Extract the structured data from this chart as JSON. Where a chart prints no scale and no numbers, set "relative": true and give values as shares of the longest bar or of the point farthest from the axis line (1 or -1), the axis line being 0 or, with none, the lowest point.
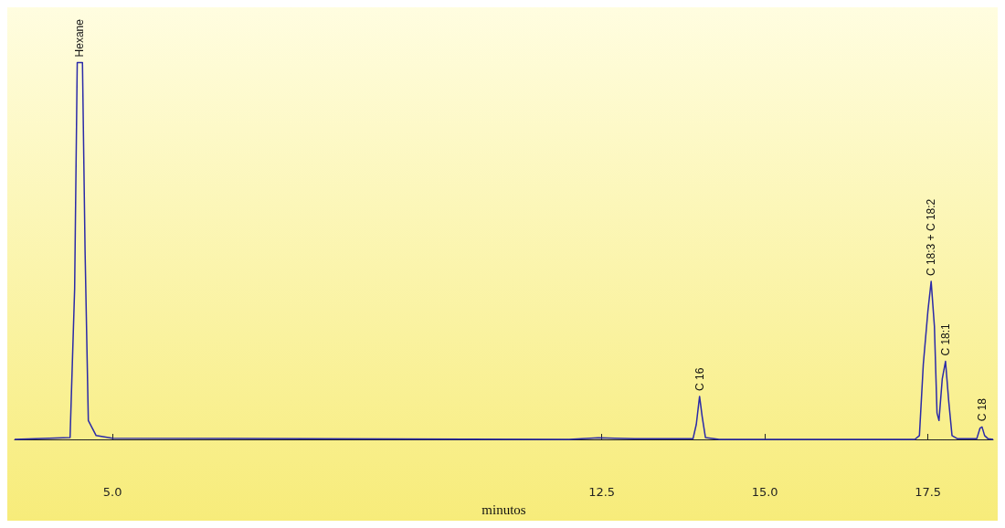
{
  "chart_data": {
    "type": "line",
    "relative": true,
    "xlabel": "minutos",
    "color": "#2a2aa8",
    "xlim": [
      3.5,
      18.5
    ],
    "xticks": [
      {
        "value": 5.0,
        "label": "5.0"
      },
      {
        "value": 12.5,
        "label": "12.5"
      },
      {
        "value": 15.0,
        "label": "15.0"
      },
      {
        "value": 17.5,
        "label": "17.5"
      }
    ],
    "x": [
      3.5,
      4.35,
      4.42,
      4.46,
      4.54,
      4.58,
      4.63,
      4.75,
      5.0,
      12.0,
      12.45,
      12.7,
      13.0,
      13.9,
      13.95,
      14.0,
      14.04,
      14.09,
      14.3,
      17.3,
      17.37,
      17.43,
      17.5,
      17.55,
      17.6,
      17.64,
      17.67,
      17.72,
      17.77,
      17.82,
      17.87,
      17.95,
      18.25,
      18.3,
      18.33,
      18.37,
      18.42,
      18.5
    ],
    "values": [
      0,
      0.005,
      0.4,
      1,
      1,
      0.5,
      0.05,
      0.01,
      0.003,
      0,
      0.004,
      0.003,
      0.002,
      0.002,
      0.04,
      0.114,
      0.06,
      0.005,
      0,
      0,
      0.01,
      0.2,
      0.34,
      0.419,
      0.3,
      0.07,
      0.05,
      0.16,
      0.207,
      0.1,
      0.01,
      0.002,
      0.002,
      0.03,
      0.033,
      0.01,
      0.002,
      0
    ],
    "annotations": [
      {
        "text": "Hexane",
        "x": 4.5,
        "y": 1
      },
      {
        "text": "C 16",
        "x": 14.0,
        "y": 0.114
      },
      {
        "text": "C 18:3 + C 18:2",
        "x": 17.55,
        "y": 0.419
      },
      {
        "text": "C 18:1",
        "x": 17.77,
        "y": 0.207
      },
      {
        "text": "C 18",
        "x": 18.33,
        "y": 0.033
      }
    ]
  }
}
